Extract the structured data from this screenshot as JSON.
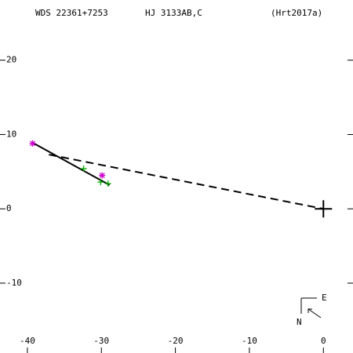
{
  "chart_data": {
    "type": "scatter",
    "title": "WDS 22361+7253",
    "subtitle": "HJ 3133AB,C",
    "reference": "(Hrt2017a)",
    "compass": {
      "east": "E",
      "north": "N"
    },
    "xlim": [
      -43.7,
      4.0
    ],
    "ylim": [
      -19.4,
      28.1
    ],
    "xticks": [
      -40,
      -30,
      -20,
      -10,
      0
    ],
    "yticks": [
      -10,
      0,
      10,
      20
    ],
    "series": [
      {
        "color": "#000000",
        "style": "solid",
        "x": [
          -39.3,
          -28.9
        ],
        "values": [
          8.9,
          3.2
        ]
      },
      {
        "color": "#000000",
        "style": "dashed",
        "x": [
          -37.1,
          0
        ],
        "values": [
          7.3,
          0
        ]
      },
      {
        "color": "#00aa00",
        "marker": "plus",
        "x": [
          -32.4,
          -30.1,
          -29.1
        ],
        "values": [
          5.4,
          3.6,
          3.4
        ]
      },
      {
        "color": "#cc00cc",
        "marker": "star",
        "x": [
          -39.3,
          -29.9
        ],
        "values": [
          8.8,
          4.5
        ]
      },
      {
        "color": "#000000",
        "marker": "bigplus",
        "x": [
          0
        ],
        "values": [
          0
        ]
      }
    ]
  }
}
